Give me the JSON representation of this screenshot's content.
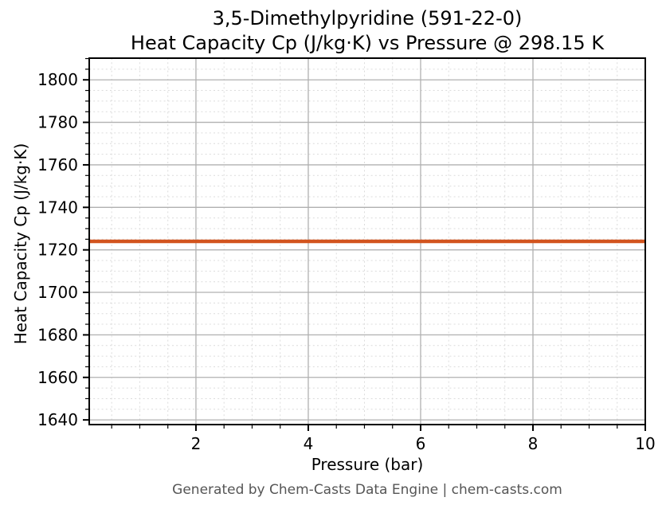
{
  "page": {
    "background": "#ffffff"
  },
  "header": {
    "title_line1": "3,5-Dimethylpyridine (591-22-0)",
    "title_line2": "Heat Capacity Cp (J/kg·K) vs Pressure @ 298.15 K"
  },
  "footer": {
    "text": "Generated by Chem-Casts Data Engine | chem-casts.com",
    "color": "#555555"
  },
  "chart_data": {
    "type": "line",
    "title": "3,5-Dimethylpyridine (591-22-0)",
    "subtitle": "Heat Capacity Cp (J/kg·K) vs Pressure @ 298.15 K",
    "compound": "3,5-Dimethylpyridine",
    "cas_number": "591-22-0",
    "temperature_label": "298.15 K",
    "xlabel": "Pressure (bar)",
    "ylabel": "Heat Capacity Cp (J/kg·K)",
    "xlim": [
      0.1,
      10
    ],
    "ylim": [
      1637.8,
      1810.2
    ],
    "x_ticks": [
      2,
      4,
      6,
      8,
      10
    ],
    "x_minor_step": 0.5,
    "y_ticks": [
      1640,
      1660,
      1680,
      1700,
      1720,
      1740,
      1760,
      1780,
      1800
    ],
    "y_minor_step": 5,
    "grid": {
      "major": true,
      "minor": true,
      "major_color": "#b0b0b0",
      "minor_color": "#dcdcdc"
    },
    "axis_color": "#000000",
    "series": [
      {
        "name": "Heat Capacity Cp",
        "color": "#d2541e",
        "linewidth": 4.5,
        "x": [
          0.1,
          10
        ],
        "y": [
          1724,
          1724
        ]
      }
    ]
  }
}
